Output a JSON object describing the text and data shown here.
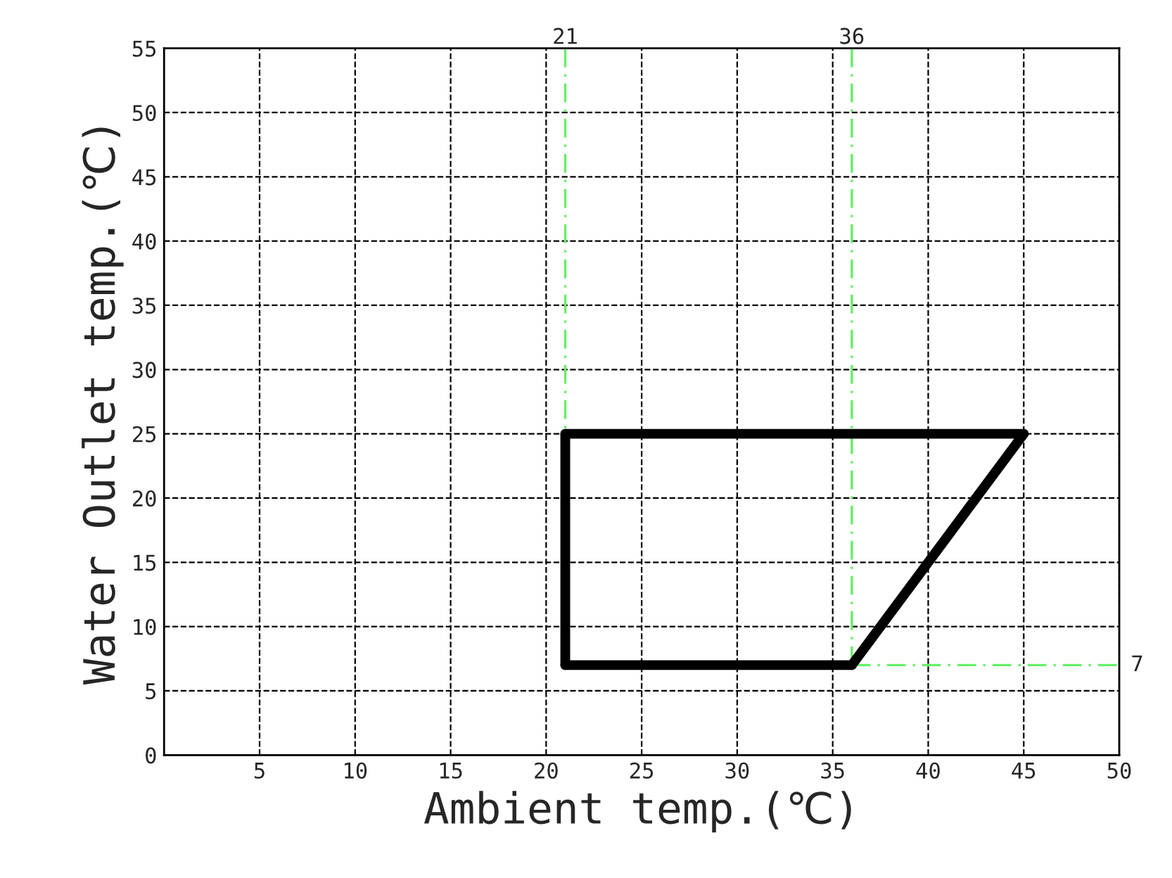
{
  "chart_data": {
    "type": "line",
    "xlabel": "Ambient temp.(℃)",
    "ylabel": "Water Outlet temp.(℃)",
    "xlim": [
      0,
      50
    ],
    "xticks": [
      5,
      10,
      15,
      20,
      25,
      30,
      35,
      40,
      45,
      50
    ],
    "ylim": [
      0,
      55
    ],
    "yticks": [
      0,
      5,
      10,
      15,
      20,
      25,
      30,
      35,
      40,
      45,
      50,
      55
    ],
    "grid": true,
    "marker": "none",
    "line_style": "solid",
    "series": [
      {
        "color": "#000000",
        "x": [
          21,
          36
        ],
        "values": [
          7,
          7
        ]
      },
      {
        "color": "#000000",
        "x": [
          21,
          45
        ],
        "values": [
          25,
          25
        ]
      },
      {
        "color": "#000000",
        "x": [
          36,
          45
        ],
        "values": [
          7,
          25
        ]
      },
      {
        "color": "#000000",
        "x": [
          21,
          21
        ],
        "values": [
          7,
          25
        ]
      }
    ],
    "ref_lines": [
      {
        "axis": "x",
        "value": 21,
        "label": "21",
        "color": "#66ee66",
        "line_style": "dashdot"
      },
      {
        "axis": "x",
        "value": 36,
        "label": "36",
        "color": "#66ee66",
        "line_style": "dashdot"
      },
      {
        "axis": "y",
        "value": 7,
        "label": "7",
        "color": "#66ee66",
        "line_style": "dashdot"
      }
    ]
  }
}
